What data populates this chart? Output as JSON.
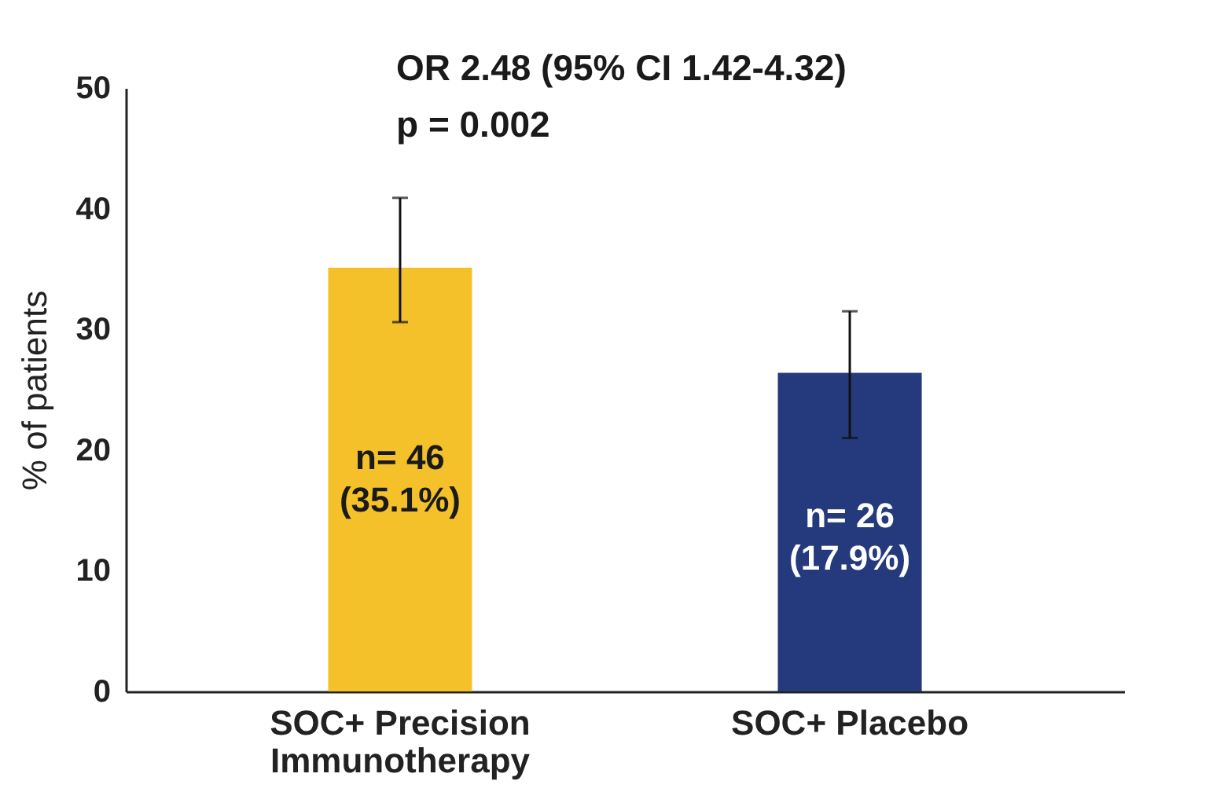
{
  "chart_data": {
    "type": "bar",
    "ylabel": "% of patients",
    "categories": [
      "SOC+ Precision Immunotherapy",
      "SOC+ Placebo"
    ],
    "values": [
      35.1,
      26.4
    ],
    "colors": [
      "#f5c12a",
      "#253a7c"
    ],
    "errors": [
      [
        30.6,
        40.9
      ],
      [
        21.0,
        31.5
      ]
    ],
    "value_labels": [
      "n= 46\n(35.1%)",
      "n= 26\n(17.9%)"
    ],
    "annotations": [
      "OR 2.48 (95% CI 1.42-4.32)",
      "p = 0.002"
    ],
    "ylim": [
      0,
      50
    ],
    "yticks": [
      0,
      10,
      20,
      30,
      40,
      50
    ],
    "grid": false
  }
}
